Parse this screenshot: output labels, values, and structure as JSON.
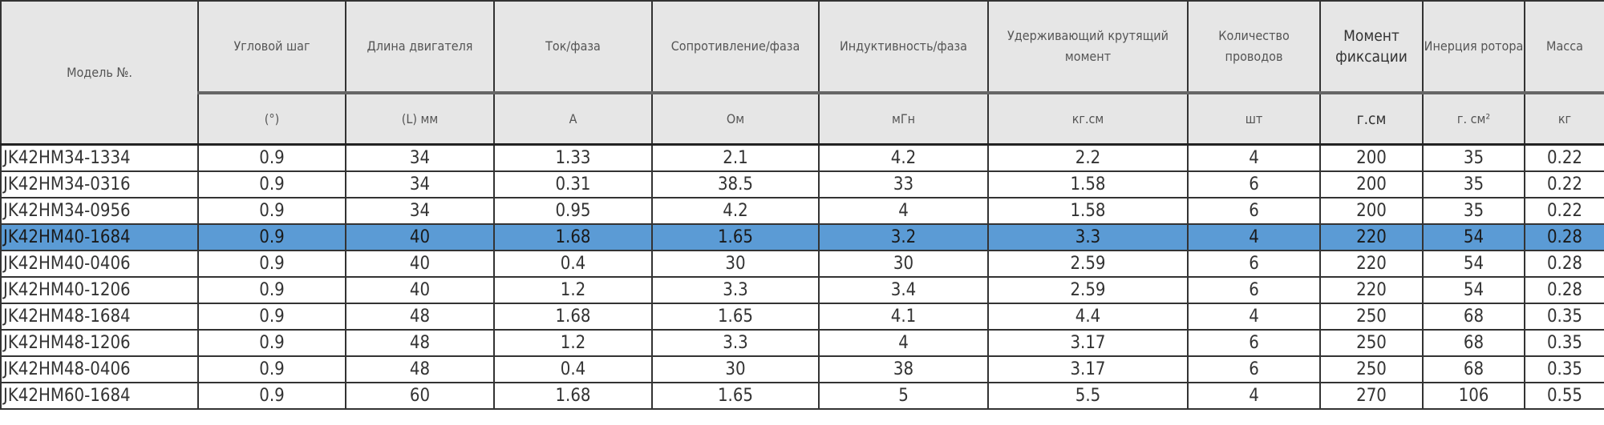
{
  "header": {
    "model": "Модель №.",
    "columns": [
      {
        "title": "Угловой шаг",
        "unit": "(°)"
      },
      {
        "title": "Длина двигателя",
        "unit": "(L) мм"
      },
      {
        "title": "Ток/фаза",
        "unit": "A"
      },
      {
        "title": "Сопротивление/фаза",
        "unit": "Ом"
      },
      {
        "title": "Индуктивность/фаза",
        "unit": "мГн"
      },
      {
        "title": "Удерживающий крутящий момент",
        "unit": "кг.см"
      },
      {
        "title": "Количество проводов",
        "unit": "шт"
      },
      {
        "title": "Момент фиксации",
        "unit": "г.см"
      },
      {
        "title": "Инерция ротора",
        "unit": "г. см²"
      },
      {
        "title": "Масса",
        "unit": "кг"
      }
    ]
  },
  "highlight_color": "#5b9bd5",
  "selected_row": 3,
  "rows": [
    [
      "JK42HM34-1334",
      "0.9",
      "34",
      "1.33",
      "2.1",
      "4.2",
      "2.2",
      "4",
      "200",
      "35",
      "0.22"
    ],
    [
      "JK42HM34-0316",
      "0.9",
      "34",
      "0.31",
      "38.5",
      "33",
      "1.58",
      "6",
      "200",
      "35",
      "0.22"
    ],
    [
      "JK42HM34-0956",
      "0.9",
      "34",
      "0.95",
      "4.2",
      "4",
      "1.58",
      "6",
      "200",
      "35",
      "0.22"
    ],
    [
      "JK42HM40-1684",
      "0.9",
      "40",
      "1.68",
      "1.65",
      "3.2",
      "3.3",
      "4",
      "220",
      "54",
      "0.28"
    ],
    [
      "JK42HM40-0406",
      "0.9",
      "40",
      "0.4",
      "30",
      "30",
      "2.59",
      "6",
      "220",
      "54",
      "0.28"
    ],
    [
      "JK42HM40-1206",
      "0.9",
      "40",
      "1.2",
      "3.3",
      "3.4",
      "2.59",
      "6",
      "220",
      "54",
      "0.28"
    ],
    [
      "JK42HM48-1684",
      "0.9",
      "48",
      "1.68",
      "1.65",
      "4.1",
      "4.4",
      "4",
      "250",
      "68",
      "0.35"
    ],
    [
      "JK42HM48-1206",
      "0.9",
      "48",
      "1.2",
      "3.3",
      "4",
      "3.17",
      "6",
      "250",
      "68",
      "0.35"
    ],
    [
      "JK42HM48-0406",
      "0.9",
      "48",
      "0.4",
      "30",
      "38",
      "3.17",
      "6",
      "250",
      "68",
      "0.35"
    ],
    [
      "JK42HM60-1684",
      "0.9",
      "60",
      "1.68",
      "1.65",
      "5",
      "5.5",
      "4",
      "270",
      "106",
      "0.55"
    ]
  ]
}
